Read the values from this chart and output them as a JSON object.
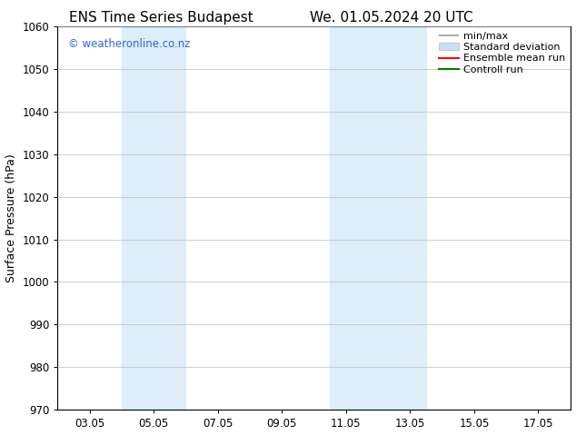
{
  "title_left": "ENS Time Series Budapest",
  "title_right": "We. 01.05.2024 20 UTC",
  "ylabel": "Surface Pressure (hPa)",
  "ylim": [
    970,
    1060
  ],
  "yticks": [
    970,
    980,
    990,
    1000,
    1010,
    1020,
    1030,
    1040,
    1050,
    1060
  ],
  "xtick_labels": [
    "03.05",
    "05.05",
    "07.05",
    "09.05",
    "11.05",
    "13.05",
    "15.05",
    "17.05"
  ],
  "xtick_positions": [
    3,
    5,
    7,
    9,
    11,
    13,
    15,
    17
  ],
  "x_min": 2.0,
  "x_max": 18.0,
  "shaded_bands": [
    {
      "x_start": 4.0,
      "x_end": 6.0
    },
    {
      "x_start": 10.5,
      "x_end": 13.5
    }
  ],
  "shaded_color": "#ddeef8",
  "watermark_text": "© weatheronline.co.nz",
  "watermark_color": "#3366cc",
  "legend_labels": [
    "min/max",
    "Standard deviation",
    "Ensemble mean run",
    "Controll run"
  ],
  "minmax_color": "#999999",
  "std_color": "#cce0f0",
  "ens_color": "#ff0000",
  "ctrl_color": "#007700",
  "background_color": "#ffffff",
  "grid_color": "#bbbbbb",
  "title_fontsize": 11,
  "tick_fontsize": 8.5,
  "ylabel_fontsize": 9,
  "watermark_fontsize": 8.5,
  "legend_fontsize": 8
}
